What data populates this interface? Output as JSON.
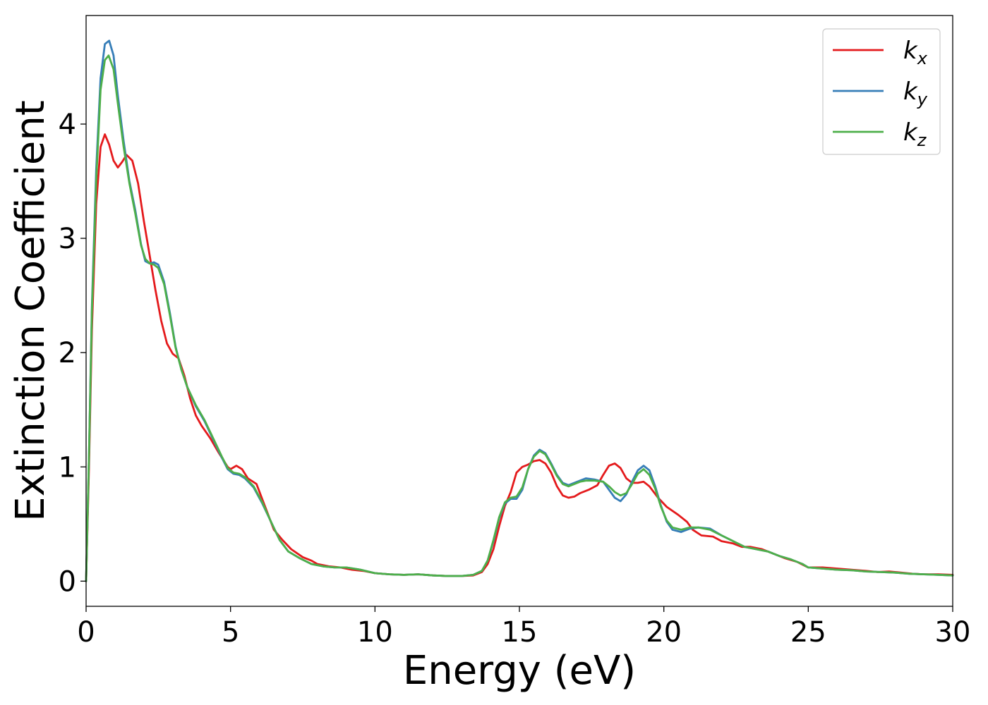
{
  "chart_data": {
    "type": "line",
    "title": "",
    "xlabel": "Energy (eV)",
    "ylabel": "Extinction Coefficient",
    "xlim": [
      0,
      30
    ],
    "ylim": [
      -0.22,
      4.95
    ],
    "xticks": [
      0,
      5,
      10,
      15,
      20,
      25,
      30
    ],
    "yticks": [
      0,
      1,
      2,
      3,
      4
    ],
    "grid": false,
    "legend_position": "top-right",
    "series": [
      {
        "name": "k",
        "subscript": "x",
        "color": "#e41a1c",
        "points": [
          [
            0,
            0.0
          ],
          [
            0.1,
            1.0
          ],
          [
            0.2,
            2.2
          ],
          [
            0.35,
            3.3
          ],
          [
            0.5,
            3.8
          ],
          [
            0.65,
            3.91
          ],
          [
            0.8,
            3.82
          ],
          [
            0.95,
            3.68
          ],
          [
            1.1,
            3.62
          ],
          [
            1.25,
            3.67
          ],
          [
            1.4,
            3.73
          ],
          [
            1.6,
            3.68
          ],
          [
            1.8,
            3.48
          ],
          [
            2.0,
            3.15
          ],
          [
            2.2,
            2.85
          ],
          [
            2.4,
            2.55
          ],
          [
            2.6,
            2.28
          ],
          [
            2.8,
            2.08
          ],
          [
            3.0,
            1.99
          ],
          [
            3.2,
            1.95
          ],
          [
            3.4,
            1.8
          ],
          [
            3.6,
            1.6
          ],
          [
            3.8,
            1.45
          ],
          [
            4.0,
            1.36
          ],
          [
            4.3,
            1.25
          ],
          [
            4.6,
            1.12
          ],
          [
            4.9,
            1.0
          ],
          [
            5.0,
            0.98
          ],
          [
            5.2,
            1.01
          ],
          [
            5.4,
            0.98
          ],
          [
            5.6,
            0.9
          ],
          [
            5.9,
            0.85
          ],
          [
            6.2,
            0.65
          ],
          [
            6.5,
            0.45
          ],
          [
            6.8,
            0.36
          ],
          [
            7.1,
            0.28
          ],
          [
            7.5,
            0.21
          ],
          [
            7.8,
            0.18
          ],
          [
            8.0,
            0.15
          ],
          [
            8.4,
            0.13
          ],
          [
            8.8,
            0.12
          ],
          [
            9.2,
            0.1
          ],
          [
            9.6,
            0.09
          ],
          [
            10.0,
            0.07
          ],
          [
            10.5,
            0.06
          ],
          [
            11.0,
            0.055
          ],
          [
            11.5,
            0.06
          ],
          [
            12.0,
            0.05
          ],
          [
            12.5,
            0.045
          ],
          [
            13.0,
            0.045
          ],
          [
            13.4,
            0.05
          ],
          [
            13.7,
            0.08
          ],
          [
            13.9,
            0.15
          ],
          [
            14.1,
            0.28
          ],
          [
            14.3,
            0.48
          ],
          [
            14.5,
            0.66
          ],
          [
            14.7,
            0.78
          ],
          [
            14.9,
            0.95
          ],
          [
            15.1,
            1.0
          ],
          [
            15.3,
            1.02
          ],
          [
            15.5,
            1.05
          ],
          [
            15.7,
            1.06
          ],
          [
            15.9,
            1.03
          ],
          [
            16.1,
            0.95
          ],
          [
            16.3,
            0.83
          ],
          [
            16.5,
            0.75
          ],
          [
            16.7,
            0.73
          ],
          [
            16.9,
            0.74
          ],
          [
            17.1,
            0.77
          ],
          [
            17.4,
            0.8
          ],
          [
            17.7,
            0.84
          ],
          [
            17.9,
            0.93
          ],
          [
            18.1,
            1.01
          ],
          [
            18.3,
            1.03
          ],
          [
            18.5,
            0.99
          ],
          [
            18.7,
            0.9
          ],
          [
            18.9,
            0.86
          ],
          [
            19.1,
            0.86
          ],
          [
            19.3,
            0.87
          ],
          [
            19.5,
            0.83
          ],
          [
            19.8,
            0.73
          ],
          [
            20.1,
            0.65
          ],
          [
            20.5,
            0.58
          ],
          [
            20.8,
            0.52
          ],
          [
            21.0,
            0.45
          ],
          [
            21.3,
            0.4
          ],
          [
            21.7,
            0.39
          ],
          [
            22.0,
            0.35
          ],
          [
            22.4,
            0.33
          ],
          [
            22.7,
            0.3
          ],
          [
            23.0,
            0.3
          ],
          [
            23.4,
            0.28
          ],
          [
            23.8,
            0.24
          ],
          [
            24.2,
            0.2
          ],
          [
            24.6,
            0.17
          ],
          [
            25.0,
            0.12
          ],
          [
            25.5,
            0.12
          ],
          [
            26.0,
            0.11
          ],
          [
            26.5,
            0.1
          ],
          [
            27.0,
            0.09
          ],
          [
            27.4,
            0.08
          ],
          [
            27.8,
            0.085
          ],
          [
            28.2,
            0.075
          ],
          [
            28.6,
            0.065
          ],
          [
            29.0,
            0.06
          ],
          [
            29.5,
            0.06
          ],
          [
            30.0,
            0.055
          ]
        ]
      },
      {
        "name": "k",
        "subscript": "y",
        "color": "#377eb8",
        "points": [
          [
            0,
            0.0
          ],
          [
            0.1,
            1.1
          ],
          [
            0.2,
            2.4
          ],
          [
            0.35,
            3.6
          ],
          [
            0.5,
            4.4
          ],
          [
            0.65,
            4.7
          ],
          [
            0.8,
            4.73
          ],
          [
            0.95,
            4.6
          ],
          [
            1.1,
            4.25
          ],
          [
            1.3,
            3.85
          ],
          [
            1.5,
            3.5
          ],
          [
            1.7,
            3.25
          ],
          [
            1.9,
            2.95
          ],
          [
            2.05,
            2.8
          ],
          [
            2.2,
            2.78
          ],
          [
            2.35,
            2.79
          ],
          [
            2.5,
            2.77
          ],
          [
            2.7,
            2.62
          ],
          [
            2.9,
            2.35
          ],
          [
            3.1,
            2.05
          ],
          [
            3.3,
            1.85
          ],
          [
            3.5,
            1.7
          ],
          [
            3.8,
            1.53
          ],
          [
            4.1,
            1.4
          ],
          [
            4.4,
            1.24
          ],
          [
            4.7,
            1.08
          ],
          [
            4.9,
            0.98
          ],
          [
            5.1,
            0.94
          ],
          [
            5.3,
            0.93
          ],
          [
            5.5,
            0.9
          ],
          [
            5.8,
            0.82
          ],
          [
            6.1,
            0.68
          ],
          [
            6.4,
            0.52
          ],
          [
            6.7,
            0.36
          ],
          [
            7.0,
            0.26
          ],
          [
            7.4,
            0.2
          ],
          [
            7.8,
            0.15
          ],
          [
            8.2,
            0.13
          ],
          [
            8.6,
            0.12
          ],
          [
            9.0,
            0.12
          ],
          [
            9.5,
            0.1
          ],
          [
            10.0,
            0.07
          ],
          [
            10.5,
            0.06
          ],
          [
            11.0,
            0.055
          ],
          [
            11.5,
            0.06
          ],
          [
            12.0,
            0.05
          ],
          [
            12.5,
            0.045
          ],
          [
            13.0,
            0.045
          ],
          [
            13.4,
            0.055
          ],
          [
            13.7,
            0.09
          ],
          [
            13.9,
            0.18
          ],
          [
            14.1,
            0.35
          ],
          [
            14.3,
            0.55
          ],
          [
            14.5,
            0.68
          ],
          [
            14.7,
            0.72
          ],
          [
            14.9,
            0.72
          ],
          [
            15.1,
            0.8
          ],
          [
            15.3,
            0.98
          ],
          [
            15.5,
            1.1
          ],
          [
            15.7,
            1.15
          ],
          [
            15.9,
            1.12
          ],
          [
            16.1,
            1.03
          ],
          [
            16.3,
            0.93
          ],
          [
            16.5,
            0.86
          ],
          [
            16.7,
            0.84
          ],
          [
            16.9,
            0.86
          ],
          [
            17.1,
            0.88
          ],
          [
            17.3,
            0.9
          ],
          [
            17.6,
            0.89
          ],
          [
            17.9,
            0.87
          ],
          [
            18.1,
            0.8
          ],
          [
            18.3,
            0.73
          ],
          [
            18.5,
            0.7
          ],
          [
            18.7,
            0.76
          ],
          [
            18.9,
            0.87
          ],
          [
            19.1,
            0.97
          ],
          [
            19.3,
            1.01
          ],
          [
            19.5,
            0.97
          ],
          [
            19.7,
            0.83
          ],
          [
            19.9,
            0.66
          ],
          [
            20.1,
            0.52
          ],
          [
            20.3,
            0.45
          ],
          [
            20.6,
            0.43
          ],
          [
            20.9,
            0.46
          ],
          [
            21.2,
            0.47
          ],
          [
            21.6,
            0.46
          ],
          [
            22.0,
            0.4
          ],
          [
            22.4,
            0.35
          ],
          [
            22.8,
            0.3
          ],
          [
            23.2,
            0.28
          ],
          [
            23.6,
            0.26
          ],
          [
            24.0,
            0.22
          ],
          [
            24.4,
            0.19
          ],
          [
            24.8,
            0.15
          ],
          [
            25.0,
            0.12
          ],
          [
            25.5,
            0.11
          ],
          [
            26.0,
            0.1
          ],
          [
            26.5,
            0.095
          ],
          [
            27.0,
            0.085
          ],
          [
            27.5,
            0.08
          ],
          [
            28.0,
            0.075
          ],
          [
            28.5,
            0.065
          ],
          [
            29.0,
            0.06
          ],
          [
            29.5,
            0.055
          ],
          [
            30.0,
            0.05
          ]
        ]
      },
      {
        "name": "k",
        "subscript": "z",
        "color": "#4daf4a",
        "points": [
          [
            0,
            0.0
          ],
          [
            0.1,
            1.1
          ],
          [
            0.2,
            2.35
          ],
          [
            0.35,
            3.5
          ],
          [
            0.5,
            4.3
          ],
          [
            0.65,
            4.56
          ],
          [
            0.78,
            4.6
          ],
          [
            0.95,
            4.48
          ],
          [
            1.1,
            4.18
          ],
          [
            1.3,
            3.8
          ],
          [
            1.5,
            3.48
          ],
          [
            1.7,
            3.22
          ],
          [
            1.9,
            2.94
          ],
          [
            2.05,
            2.82
          ],
          [
            2.2,
            2.78
          ],
          [
            2.35,
            2.77
          ],
          [
            2.5,
            2.74
          ],
          [
            2.7,
            2.6
          ],
          [
            2.9,
            2.33
          ],
          [
            3.1,
            2.04
          ],
          [
            3.3,
            1.85
          ],
          [
            3.5,
            1.7
          ],
          [
            3.8,
            1.54
          ],
          [
            4.1,
            1.41
          ],
          [
            4.4,
            1.25
          ],
          [
            4.7,
            1.09
          ],
          [
            4.9,
            0.99
          ],
          [
            5.1,
            0.95
          ],
          [
            5.3,
            0.94
          ],
          [
            5.5,
            0.91
          ],
          [
            5.8,
            0.83
          ],
          [
            6.1,
            0.69
          ],
          [
            6.4,
            0.52
          ],
          [
            6.7,
            0.36
          ],
          [
            7.0,
            0.26
          ],
          [
            7.4,
            0.2
          ],
          [
            7.8,
            0.15
          ],
          [
            8.2,
            0.13
          ],
          [
            8.6,
            0.12
          ],
          [
            9.0,
            0.12
          ],
          [
            9.5,
            0.1
          ],
          [
            10.0,
            0.07
          ],
          [
            10.5,
            0.06
          ],
          [
            11.0,
            0.055
          ],
          [
            11.5,
            0.06
          ],
          [
            12.0,
            0.05
          ],
          [
            12.5,
            0.045
          ],
          [
            13.0,
            0.045
          ],
          [
            13.4,
            0.055
          ],
          [
            13.7,
            0.09
          ],
          [
            13.9,
            0.18
          ],
          [
            14.1,
            0.36
          ],
          [
            14.3,
            0.56
          ],
          [
            14.5,
            0.69
          ],
          [
            14.7,
            0.73
          ],
          [
            14.9,
            0.74
          ],
          [
            15.1,
            0.82
          ],
          [
            15.3,
            0.98
          ],
          [
            15.5,
            1.09
          ],
          [
            15.7,
            1.14
          ],
          [
            15.9,
            1.11
          ],
          [
            16.1,
            1.02
          ],
          [
            16.3,
            0.92
          ],
          [
            16.5,
            0.85
          ],
          [
            16.7,
            0.83
          ],
          [
            16.9,
            0.85
          ],
          [
            17.1,
            0.87
          ],
          [
            17.3,
            0.88
          ],
          [
            17.6,
            0.88
          ],
          [
            17.9,
            0.87
          ],
          [
            18.1,
            0.83
          ],
          [
            18.3,
            0.78
          ],
          [
            18.5,
            0.75
          ],
          [
            18.7,
            0.77
          ],
          [
            18.9,
            0.85
          ],
          [
            19.1,
            0.94
          ],
          [
            19.3,
            0.98
          ],
          [
            19.5,
            0.93
          ],
          [
            19.7,
            0.81
          ],
          [
            19.9,
            0.65
          ],
          [
            20.1,
            0.53
          ],
          [
            20.3,
            0.47
          ],
          [
            20.6,
            0.45
          ],
          [
            20.9,
            0.47
          ],
          [
            21.2,
            0.47
          ],
          [
            21.6,
            0.45
          ],
          [
            22.0,
            0.4
          ],
          [
            22.4,
            0.35
          ],
          [
            22.8,
            0.3
          ],
          [
            23.2,
            0.28
          ],
          [
            23.6,
            0.26
          ],
          [
            24.0,
            0.22
          ],
          [
            24.4,
            0.19
          ],
          [
            24.8,
            0.15
          ],
          [
            25.0,
            0.12
          ],
          [
            25.5,
            0.11
          ],
          [
            26.0,
            0.1
          ],
          [
            26.5,
            0.095
          ],
          [
            27.0,
            0.085
          ],
          [
            27.5,
            0.08
          ],
          [
            28.0,
            0.075
          ],
          [
            28.5,
            0.065
          ],
          [
            29.0,
            0.06
          ],
          [
            29.5,
            0.055
          ],
          [
            30.0,
            0.05
          ]
        ]
      }
    ]
  }
}
